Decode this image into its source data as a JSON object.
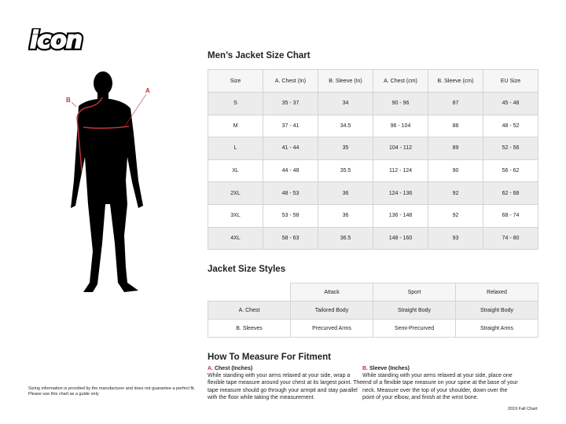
{
  "logo": {
    "text": "icon"
  },
  "figure": {
    "label_a": "A",
    "label_b": "B",
    "accent": "#c0323c"
  },
  "size_chart": {
    "title": "Men’s Jacket Size Chart",
    "headers": [
      "Size",
      "A. Chest (In)",
      "B. Sleeve (In)",
      "A. Chest (cm)",
      "B. Sleeve (cm)",
      "EU Size"
    ],
    "rows": [
      [
        "S",
        "35 - 37",
        "34",
        "90 - 96",
        "87",
        "45 - 48"
      ],
      [
        "M",
        "37 - 41",
        "34.5",
        "96 - 104",
        "88",
        "48 - 52"
      ],
      [
        "L",
        "41 - 44",
        "35",
        "104 - 112",
        "89",
        "52 - 56"
      ],
      [
        "XL",
        "44 - 48",
        "35.5",
        "112 - 124",
        "90",
        "56 - 62"
      ],
      [
        "2XL",
        "48 - 53",
        "36",
        "124 - 136",
        "92",
        "62 - 68"
      ],
      [
        "3XL",
        "53 - 58",
        "36",
        "136 - 148",
        "92",
        "68 - 74"
      ],
      [
        "4XL",
        "58 - 63",
        "36.5",
        "148 - 160",
        "93",
        "74 - 80"
      ]
    ]
  },
  "styles": {
    "title": "Jacket Size Styles",
    "headers": [
      "Attack",
      "Sport",
      "Relaxed"
    ],
    "rows": [
      [
        "A. Chest",
        "Tailored Body",
        "Straight Body",
        "Straight Body"
      ],
      [
        "B. Sleeves",
        "Precurved Arms",
        "Semi-Precurved",
        "Straight Arms"
      ]
    ]
  },
  "measure": {
    "title": "How To Measure For Fitment",
    "chest": {
      "letter": "A.",
      "title": "Chest (Inches)",
      "text": "While standing with your arms relaxed at your side, wrap a flexible tape measure around your chest at its largest point. The tape measure should go through your armpit and stay parallel with the floor while taking the measurement."
    },
    "sleeve": {
      "letter": "B.",
      "title": "Sleeve (Inches)",
      "text": "While standing with your arms relaxed at your side, place one end of a flexible tape measure on your spine at the base of your neck. Measure over the top of your shoulder, down over the point of your elbow, and finish at the wrist bone."
    }
  },
  "disclaimer": {
    "line1": "Sizing information is provided by the manufacturer and does not guarantee a perfect fit.",
    "line2": "Please use this chart as a guide only"
  },
  "footer": {
    "edition": "2019 Fall Chart"
  }
}
